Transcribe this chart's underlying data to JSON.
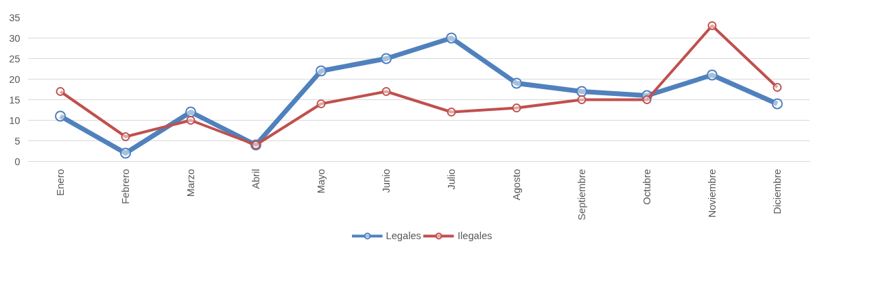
{
  "chart_data": {
    "type": "line",
    "categories": [
      "Enero",
      "Febrero",
      "Marzo",
      "Abril",
      "Mayo",
      "Junio",
      "Julio",
      "Agosto",
      "Septiembre",
      "Octubre",
      "Noviembre",
      "Diciembre"
    ],
    "series": [
      {
        "name": "Legales",
        "color": "#4f81bd",
        "values": [
          11,
          2,
          12,
          4,
          22,
          25,
          30,
          19,
          17,
          16,
          21,
          14
        ]
      },
      {
        "name": "Ilegales",
        "color": "#c0504d",
        "values": [
          17,
          6,
          10,
          4,
          14,
          17,
          12,
          13,
          15,
          15,
          33,
          18
        ]
      }
    ],
    "ylim": [
      0,
      35
    ],
    "yticks": [
      0,
      5,
      10,
      15,
      20,
      25,
      30,
      35
    ],
    "grid": "y",
    "legend": "bottom",
    "marker": "circle",
    "line_style": "solid"
  }
}
